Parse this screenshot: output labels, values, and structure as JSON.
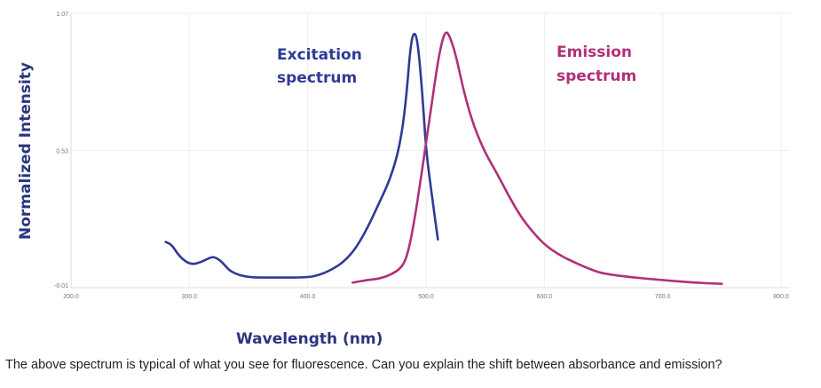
{
  "chart_data": {
    "type": "line",
    "xlabel": "Wavelength (nm)",
    "ylabel": "Normalized Intensity",
    "xlim": [
      200,
      800
    ],
    "ylim": [
      -0.01,
      1.07
    ],
    "x_ticks": [
      "200.0",
      "300.0",
      "400.0",
      "500.0",
      "600.0",
      "700.0",
      "800.0"
    ],
    "y_ticks": [
      "-0.01",
      "0.53",
      "1.07"
    ],
    "grid": true,
    "series": [
      {
        "name": "Excitation spectrum",
        "color": "#2f3a94",
        "x": [
          280,
          285,
          292,
          301,
          310,
          318,
          322,
          328,
          335,
          350,
          370,
          400,
          410,
          420,
          430,
          440,
          450,
          460,
          470,
          478,
          483,
          487,
          490,
          493,
          497,
          500,
          505,
          510
        ],
        "y": [
          0.17,
          0.16,
          0.11,
          0.08,
          0.09,
          0.11,
          0.11,
          0.09,
          0.05,
          0.03,
          0.03,
          0.03,
          0.04,
          0.06,
          0.09,
          0.14,
          0.22,
          0.32,
          0.42,
          0.55,
          0.72,
          0.95,
          1.0,
          0.96,
          0.75,
          0.53,
          0.35,
          0.18
        ]
      },
      {
        "name": "Emission spectrum",
        "color": "#b0307a",
        "x": [
          438,
          450,
          460,
          470,
          480,
          485,
          490,
          495,
          500,
          505,
          510,
          514,
          517,
          520,
          525,
          532,
          540,
          550,
          560,
          570,
          580,
          590,
          600,
          612,
          625,
          640,
          650,
          675,
          700,
          725,
          750
        ],
        "y": [
          0.01,
          0.02,
          0.025,
          0.04,
          0.07,
          0.13,
          0.25,
          0.4,
          0.56,
          0.72,
          0.88,
          0.97,
          1.0,
          0.98,
          0.91,
          0.76,
          0.63,
          0.52,
          0.44,
          0.35,
          0.27,
          0.21,
          0.16,
          0.12,
          0.09,
          0.06,
          0.045,
          0.03,
          0.02,
          0.01,
          0.005
        ]
      }
    ],
    "annotations": [
      [
        "Excitation",
        "spectrum"
      ],
      [
        "Emission",
        "spectrum"
      ]
    ]
  },
  "question": "The above spectrum is typical of what you see for fluorescence.  Can you explain the shift between absorbance and emission?"
}
